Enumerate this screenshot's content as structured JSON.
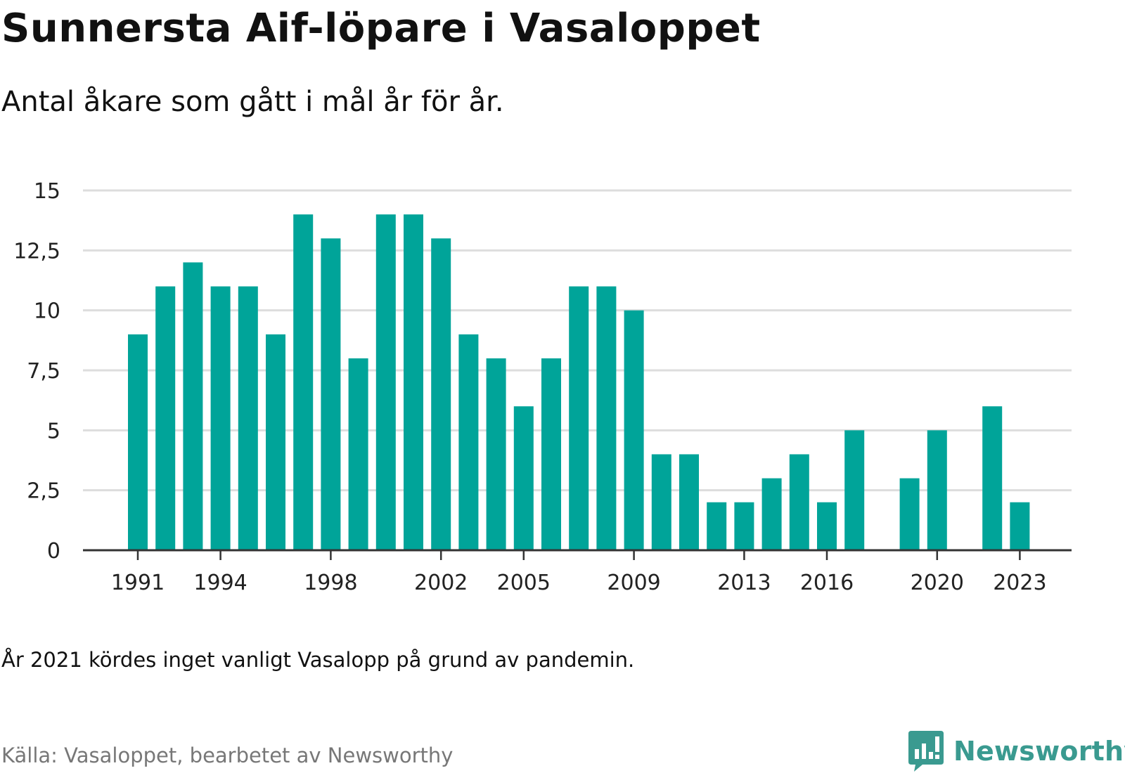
{
  "title": "Sunnersta Aif-löpare i Vasaloppet",
  "subtitle": "Antal åkare som gått i mål år för år.",
  "note": "År 2021 kördes inget vanligt Vasalopp på grund av pandemin.",
  "source": "Källa: Vasaloppet, bearbetet av Newsworthy",
  "brand": {
    "name": "Newsworthy",
    "icon": "newsworthy-logo-icon"
  },
  "colors": {
    "bar": "#00A499",
    "grid": "#dddddd",
    "axis": "#333333",
    "brand": "#3a9a90"
  },
  "chart_data": {
    "type": "bar",
    "x": [
      1991,
      1992,
      1993,
      1994,
      1995,
      1996,
      1997,
      1998,
      1999,
      2000,
      2001,
      2002,
      2003,
      2004,
      2005,
      2006,
      2007,
      2008,
      2009,
      2010,
      2011,
      2012,
      2013,
      2014,
      2015,
      2016,
      2017,
      2018,
      2019,
      2020,
      2021,
      2022,
      2023
    ],
    "values": [
      9,
      11,
      12,
      11,
      11,
      9,
      14,
      13,
      8,
      14,
      14,
      13,
      9,
      8,
      6,
      8,
      11,
      11,
      10,
      4,
      4,
      2,
      2,
      3,
      4,
      2,
      5,
      0,
      3,
      5,
      0,
      6,
      2
    ],
    "ylim": [
      0,
      15
    ],
    "yticks": [
      0,
      2.5,
      5,
      7.5,
      10,
      12.5,
      15
    ],
    "ytick_labels": [
      "0",
      "2,5",
      "5",
      "7,5",
      "10",
      "12,5",
      "15"
    ],
    "xticks": [
      1991,
      1994,
      1998,
      2002,
      2005,
      2009,
      2013,
      2016,
      2020,
      2023
    ],
    "xtick_labels": [
      "1991",
      "1994",
      "1998",
      "2002",
      "2005",
      "2009",
      "2013",
      "2016",
      "2020",
      "2023"
    ],
    "grid": true,
    "xlabel": "",
    "ylabel": ""
  }
}
